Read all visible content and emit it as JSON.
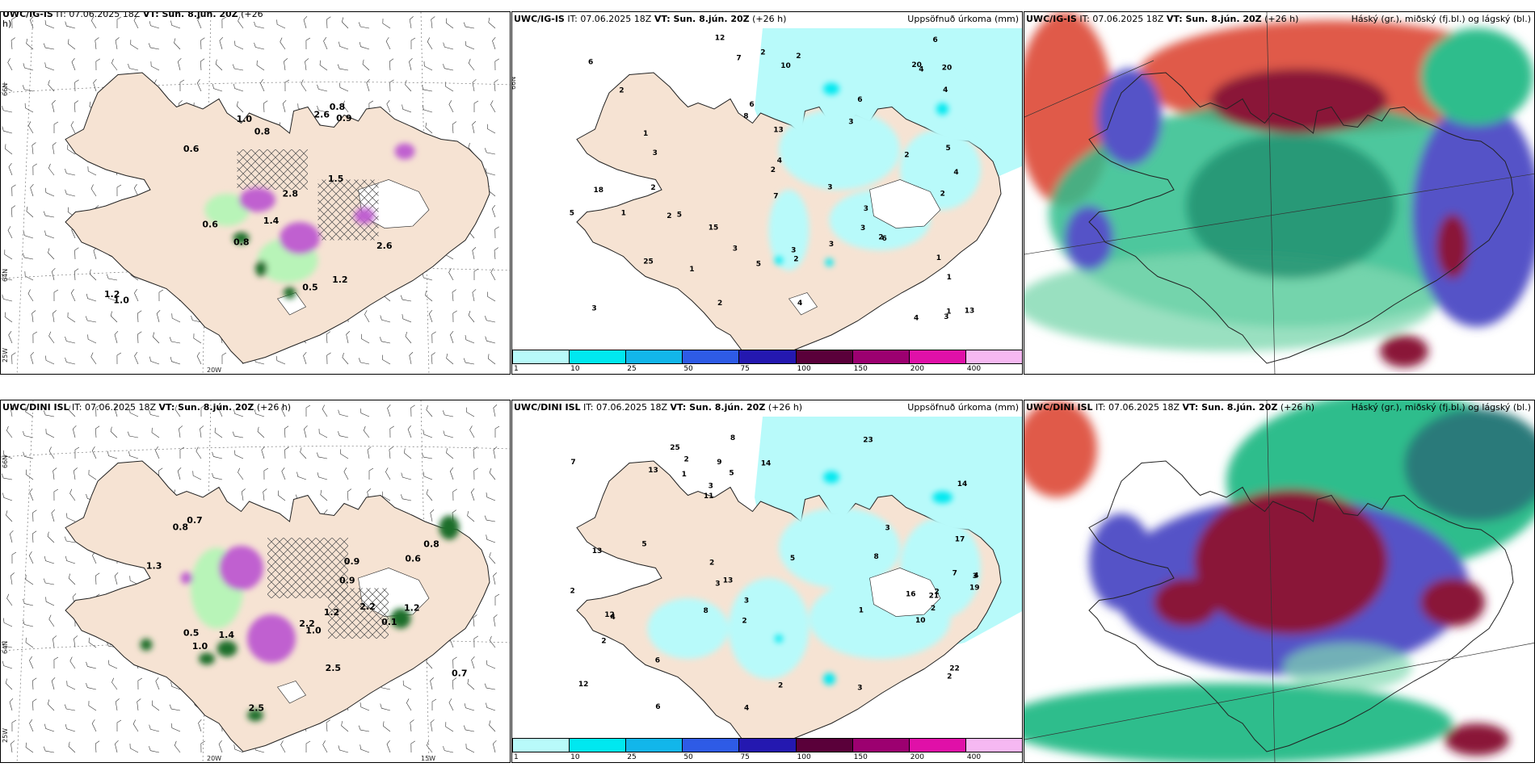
{
  "rows": [
    {
      "wind": {
        "title_model": "UWC/IG-IS",
        "title_it": "IT: 07.06.2025 18Z",
        "title_vt": "VT: Sun. 8.jún. 20Z",
        "title_lead": "(+26",
        "title_lead2": "h)",
        "labels": [
          "0.6",
          "1.5",
          "0.9",
          "1.2",
          "0.5",
          "1.0",
          "2.6",
          "0.8",
          "2.8",
          "1.2",
          "0.8",
          "2.6",
          "1.0",
          "1.4",
          "0.6",
          "0.8"
        ],
        "lat_labels": [
          "66N",
          "64N",
          "25W"
        ],
        "lon_labels": [
          "20W"
        ]
      },
      "precip": {
        "title_model": "UWC/IG-IS",
        "title_it": "IT: 07.06.2025 18Z",
        "title_vt": "VT: Sun. 8.jún. 20Z",
        "title_lead": "(+26 h)",
        "title_right": "Uppsöfnuð úrkoma (mm)",
        "labels": [
          "1",
          "6",
          "2",
          "1",
          "2",
          "6",
          "1",
          "2",
          "3",
          "3",
          "4",
          "5",
          "4",
          "3",
          "2",
          "2",
          "1",
          "2",
          "6",
          "20",
          "7",
          "2",
          "1",
          "20",
          "8",
          "3",
          "4",
          "5",
          "7",
          "12",
          "13",
          "15",
          "25",
          "18",
          "13",
          "6",
          "4",
          "4",
          "3",
          "3",
          "5",
          "6",
          "4",
          "2",
          "2",
          "3",
          "3",
          "3",
          "5",
          "10",
          "2",
          "3",
          "1",
          "2"
        ]
      },
      "cloud": {
        "title_model": "UWC/IG-IS",
        "title_it": "IT: 07.06.2025 18Z",
        "title_vt": "VT: Sun. 8.jún. 20Z",
        "title_lead": "(+26 h)",
        "title_right": "Háský (gr.), miðský (fj.bl.) og lágský (bl.)"
      }
    },
    {
      "wind": {
        "title_model": "UWC/DINI ISL",
        "title_it": "IT: 07.06.2025 18Z",
        "title_vt": "VT: Sun. 8.jún. 20Z",
        "title_lead": "(+26 h)",
        "labels": [
          "0.5",
          "0.8",
          "0.7",
          "0.7",
          "1.2",
          "1.0",
          "2.5",
          "1.4",
          "1.3",
          "2.2",
          "2.2",
          "2.5",
          "1.0",
          "0.9",
          "0.8",
          "0.6",
          "1.2",
          "0.9",
          "0.1"
        ],
        "lat_labels": [
          "66N",
          "64N",
          "25W"
        ],
        "lon_labels": [
          "20W",
          "15W"
        ]
      },
      "precip": {
        "title_model": "UWC/DINI ISL",
        "title_it": "IT: 07.06.2025 18Z",
        "title_vt": "VT: Sun. 8.jún. 20Z",
        "title_lead": "(+26 h)",
        "title_right": "Uppsöfnuð úrkoma (mm)",
        "labels": [
          "2",
          "2",
          "5",
          "5",
          "25",
          "12",
          "19",
          "17",
          "21",
          "14",
          "13",
          "9",
          "8",
          "7",
          "6",
          "4",
          "4",
          "3",
          "3",
          "2",
          "2",
          "2",
          "3",
          "23",
          "14",
          "16",
          "13",
          "6",
          "8",
          "22",
          "12",
          "8",
          "3",
          "2",
          "2",
          "1",
          "2",
          "7",
          "10",
          "13",
          "11",
          "3",
          "4",
          "2",
          "1",
          "5",
          "3"
        ]
      },
      "cloud": {
        "title_model": "UWC/DINI ISL",
        "title_it": "IT: 07.06.2025 18Z",
        "title_vt": "VT: Sun. 8.jún. 20Z",
        "title_lead": "(+26 h)",
        "title_right": "Háský (gr.), miðský (fj.bl.) og lágský (bl.)"
      }
    }
  ],
  "colorbar": {
    "ticks": [
      "1",
      "10",
      "25",
      "50",
      "75",
      "100",
      "150",
      "200",
      "400"
    ],
    "colors": [
      "#b8fafa",
      "#00e8f0",
      "#12b6ea",
      "#2e5be6",
      "#2418b0",
      "#5a003a",
      "#9c0070",
      "#e010a8",
      "#f6b8f2"
    ]
  },
  "colors": {
    "land": "#f6e3d3",
    "precip_light": "#b8fafa",
    "precip_med": "#00e8f0",
    "precip_pink": "#d25ad6",
    "precip_green": "#1e6e2c",
    "high_cloud": "#2ebd8c",
    "mid_cloud": "#5553c7",
    "low_cloud": "#8a1538",
    "sea_red": "#e05a4a"
  }
}
